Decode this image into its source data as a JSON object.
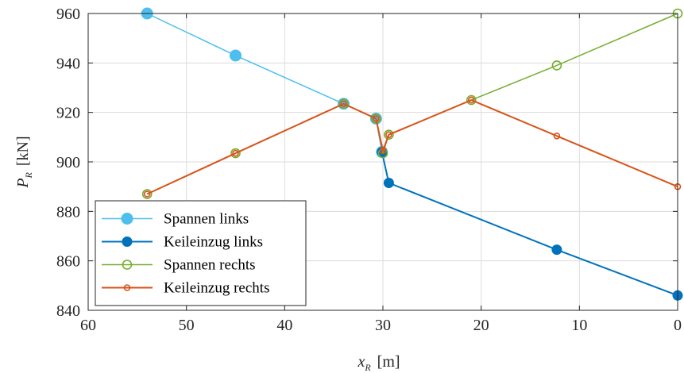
{
  "chart_data": {
    "type": "line",
    "xlabel": {
      "main": "x",
      "sub": "R",
      "unit": "[m]"
    },
    "ylabel": {
      "main": "P",
      "sub": "R",
      "unit": "[kN]"
    },
    "xlim": [
      60,
      0
    ],
    "ylim": [
      840,
      960
    ],
    "x_reversed": true,
    "xticks": [
      60,
      50,
      40,
      30,
      20,
      10,
      0
    ],
    "yticks": [
      840,
      860,
      880,
      900,
      920,
      940,
      960
    ],
    "grid": true,
    "legend_position": "bottom-left",
    "series": [
      {
        "name": "Spannen links",
        "color": "#4DBEEE",
        "marker": "filled-circle-large",
        "line_width": 1.5,
        "points": [
          [
            54,
            960
          ],
          [
            45,
            943
          ],
          [
            34,
            923.5
          ],
          [
            30.7,
            917.5
          ],
          [
            30.1,
            904
          ]
        ]
      },
      {
        "name": "Keileinzug links",
        "color": "#0072BD",
        "marker": "filled-circle",
        "line_width": 2,
        "points": [
          [
            30.1,
            904
          ],
          [
            29.4,
            891.5
          ],
          [
            12.3,
            864.5
          ],
          [
            0,
            846
          ]
        ]
      },
      {
        "name": "Spannen rechts",
        "color": "#77AC30",
        "marker": "open-circle",
        "line_width": 1.5,
        "points": [
          [
            54,
            887
          ],
          [
            45,
            903.5
          ],
          [
            34,
            923.5
          ],
          [
            30.7,
            917.5
          ],
          [
            30,
            903.5
          ],
          [
            29.4,
            911
          ],
          [
            21,
            925
          ],
          [
            12.3,
            939
          ],
          [
            0,
            960
          ]
        ]
      },
      {
        "name": "Keileinzug rechts",
        "color": "#D95319",
        "marker": "small-open-circle",
        "line_width": 2,
        "points": [
          [
            54,
            887
          ],
          [
            45,
            903.5
          ],
          [
            34,
            923.5
          ],
          [
            30.7,
            917.5
          ],
          [
            30,
            904.5
          ],
          [
            29.4,
            911
          ],
          [
            21,
            925
          ],
          [
            12.3,
            910.5
          ],
          [
            0,
            890
          ]
        ]
      }
    ]
  }
}
